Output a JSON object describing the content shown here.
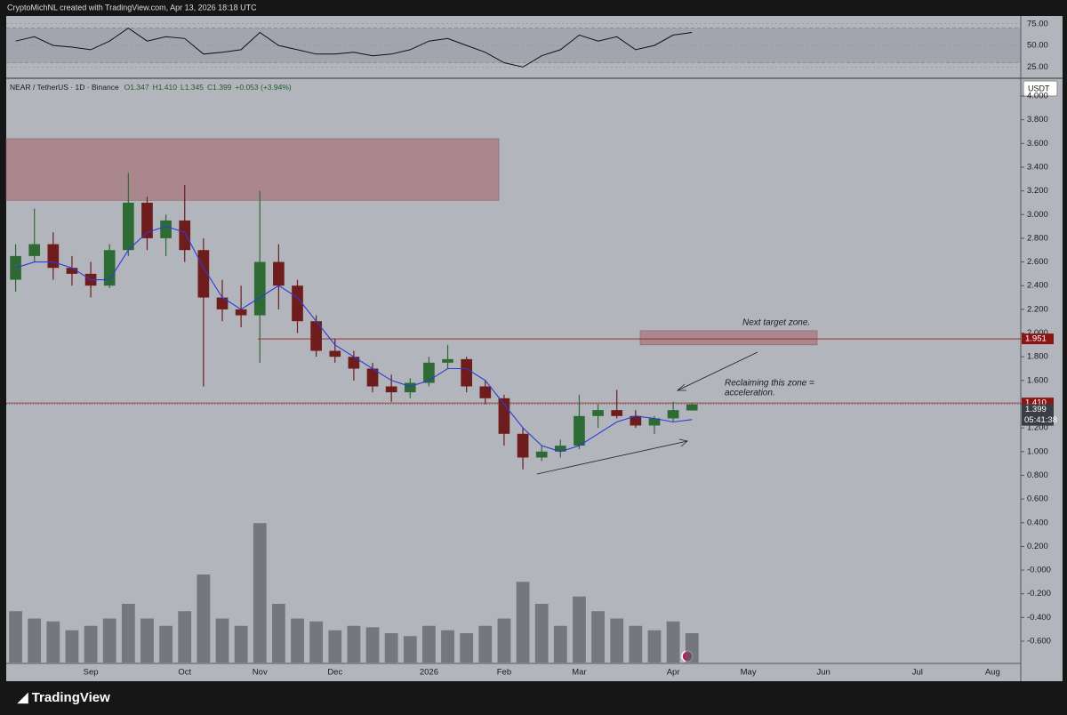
{
  "chart_data": {
    "type": "candlestick",
    "credit": "CryptoMichNL created with TradingView.com, Apr 13, 2026 18:18 UTC",
    "legend": {
      "symbol": "NEAR / TetherUS · 1D · Binance",
      "open": "O1.347",
      "high": "H1.410",
      "low": "L1.345",
      "close": "C1.399",
      "change": "+0.053 (+3.94%)"
    },
    "currency": "USDT",
    "brand": "TradingView",
    "categories": [
      null,
      null,
      null,
      null,
      "Sep",
      null,
      null,
      null,
      null,
      "Oct",
      null,
      null,
      null,
      "Nov",
      null,
      null,
      null,
      "Dec",
      null,
      null,
      null,
      null,
      "2026",
      null,
      null,
      null,
      "Feb",
      null,
      null,
      null,
      "Mar",
      null,
      null,
      null,
      null,
      "Apr",
      null,
      null,
      null,
      "May",
      null,
      null,
      null,
      "Jun",
      null,
      null,
      null,
      null,
      "Jul",
      null,
      null,
      null,
      "Aug",
      null
    ],
    "open": [
      2.45,
      2.65,
      2.75,
      2.55,
      2.5,
      2.4,
      2.7,
      3.1,
      2.8,
      2.95,
      2.7,
      2.3,
      2.2,
      2.15,
      2.6,
      2.4,
      2.1,
      1.85,
      1.8,
      1.7,
      1.55,
      1.5,
      1.58,
      1.75,
      1.78,
      1.55,
      1.45,
      1.15,
      0.95,
      1.0,
      1.05,
      1.3,
      1.35,
      1.3,
      1.22,
      1.28,
      1.347,
      null,
      null,
      null,
      null,
      null,
      null,
      null,
      null,
      null,
      null,
      null,
      null,
      null,
      null,
      null,
      null,
      null
    ],
    "high": [
      2.75,
      3.05,
      2.85,
      2.65,
      2.6,
      2.75,
      3.35,
      3.15,
      3.0,
      3.25,
      2.8,
      2.45,
      2.4,
      3.2,
      2.75,
      2.45,
      2.15,
      1.95,
      1.85,
      1.75,
      1.65,
      1.62,
      1.8,
      1.9,
      1.8,
      1.6,
      1.48,
      1.2,
      1.05,
      1.1,
      1.48,
      1.4,
      1.52,
      1.35,
      1.3,
      1.42,
      1.41,
      null,
      null,
      null,
      null,
      null,
      null,
      null,
      null,
      null,
      null,
      null,
      null,
      null,
      null,
      null,
      null,
      null
    ],
    "low": [
      2.35,
      2.6,
      2.45,
      2.4,
      2.3,
      2.38,
      2.65,
      2.7,
      2.65,
      2.6,
      1.55,
      2.1,
      2.05,
      1.75,
      2.2,
      2.0,
      1.8,
      1.75,
      1.6,
      1.5,
      1.42,
      1.45,
      1.55,
      1.7,
      1.5,
      1.4,
      1.05,
      0.85,
      0.92,
      0.95,
      1.02,
      1.2,
      1.28,
      1.2,
      1.15,
      1.25,
      1.345,
      null,
      null,
      null,
      null,
      null,
      null,
      null,
      null,
      null,
      null,
      null,
      null,
      null,
      null,
      null,
      null,
      null
    ],
    "close": [
      2.65,
      2.75,
      2.55,
      2.5,
      2.4,
      2.7,
      3.1,
      2.8,
      2.95,
      2.7,
      2.3,
      2.2,
      2.15,
      2.6,
      2.4,
      2.1,
      1.85,
      1.8,
      1.7,
      1.55,
      1.5,
      1.58,
      1.75,
      1.78,
      1.55,
      1.45,
      1.15,
      0.95,
      1.0,
      1.05,
      1.3,
      1.35,
      1.3,
      1.22,
      1.28,
      1.35,
      1.399,
      null,
      null,
      null,
      null,
      null,
      null,
      null,
      null,
      null,
      null,
      null,
      null,
      null,
      null,
      null,
      null,
      null
    ],
    "up_color": "#2e6b34",
    "down_color": "#6e1c1c",
    "ma": {
      "color": "#2b3bd6",
      "values": [
        2.55,
        2.6,
        2.6,
        2.55,
        2.45,
        2.45,
        2.7,
        2.85,
        2.9,
        2.85,
        2.55,
        2.3,
        2.2,
        2.3,
        2.4,
        2.3,
        2.1,
        1.9,
        1.8,
        1.7,
        1.6,
        1.55,
        1.6,
        1.7,
        1.7,
        1.6,
        1.4,
        1.2,
        1.05,
        1.0,
        1.05,
        1.15,
        1.25,
        1.3,
        1.28,
        1.25,
        1.27,
        null,
        null,
        null,
        null,
        null,
        null,
        null,
        null,
        null,
        null,
        null,
        null,
        null,
        null,
        null,
        null,
        null
      ]
    },
    "ylim": [
      -0.78,
      4.15
    ],
    "yticks": [
      {
        "value": -0.6,
        "label": "-0.600"
      },
      {
        "value": -0.4,
        "label": "-0.400"
      },
      {
        "value": -0.2,
        "label": "-0.200"
      },
      {
        "value": 0,
        "label": "-0.000"
      },
      {
        "value": 0.2,
        "label": "0.200"
      },
      {
        "value": 0.4,
        "label": "0.400"
      },
      {
        "value": 0.6,
        "label": "0.600"
      },
      {
        "value": 0.8,
        "label": "0.800"
      },
      {
        "value": 1,
        "label": "1.000"
      },
      {
        "value": 1.2,
        "label": "1.200"
      },
      {
        "value": 1.4,
        "label": "1.400"
      },
      {
        "value": 1.6,
        "label": "1.600"
      },
      {
        "value": 1.8,
        "label": "1.800"
      },
      {
        "value": 2,
        "label": "2.000"
      },
      {
        "value": 2.2,
        "label": "2.200"
      },
      {
        "value": 2.4,
        "label": "2.400"
      },
      {
        "value": 2.6,
        "label": "2.600"
      },
      {
        "value": 2.8,
        "label": "2.800"
      },
      {
        "value": 3,
        "label": "3.000"
      },
      {
        "value": 3.2,
        "label": "3.200"
      },
      {
        "value": 3.4,
        "label": "3.400"
      },
      {
        "value": 3.6,
        "label": "3.600"
      },
      {
        "value": 3.8,
        "label": "3.800"
      },
      {
        "value": 4,
        "label": "4.000"
      }
    ],
    "zones": [
      {
        "from": 3.12,
        "to": 3.64,
        "color": "#a9878d"
      },
      {
        "from": 1.9,
        "to": 2.02,
        "color": "#a9878d"
      }
    ],
    "levels": [
      {
        "value": 1.951,
        "color": "#9b1a1a"
      },
      {
        "value": 1.41,
        "color": "#9b1a1a"
      }
    ],
    "price_labels": [
      {
        "value": 1.951,
        "color": "#8b1414"
      },
      {
        "value": {
          "value": 1.41,
          "label": "1.410"
        },
        "color": "#8b1414"
      },
      {
        "value": 1.399,
        "color": "#3a3d44",
        "countdown": "05:41:38"
      }
    ],
    "annotations": [
      "Next target zone.",
      "Reclaiming this zone =",
      "acceleration."
    ],
    "volume": {
      "color": "#5a5d64",
      "values": [
        35,
        30,
        28,
        22,
        25,
        30,
        40,
        30,
        25,
        35,
        60,
        30,
        25,
        95,
        40,
        30,
        28,
        22,
        25,
        24,
        20,
        18,
        25,
        22,
        20,
        25,
        30,
        55,
        40,
        25,
        45,
        35,
        30,
        25,
        22,
        28,
        20,
        null,
        null,
        null,
        null,
        null,
        null,
        null,
        null,
        null,
        null,
        null,
        null,
        null,
        null,
        null,
        null,
        null
      ]
    },
    "vlim": [
      0,
      100
    ],
    "rsi": {
      "color": "#111111",
      "values": [
        55,
        60,
        50,
        48,
        45,
        55,
        70,
        55,
        60,
        58,
        40,
        42,
        45,
        65,
        50,
        45,
        40,
        40,
        42,
        38,
        40,
        45,
        55,
        58,
        50,
        42,
        30,
        25,
        38,
        45,
        62,
        55,
        60,
        45,
        50,
        62,
        65,
        null,
        null,
        null,
        null,
        null,
        null,
        null,
        null,
        null,
        null,
        null,
        null,
        null,
        null,
        null,
        null,
        null
      ]
    },
    "rsi_lim": [
      12,
      84
    ],
    "rsi_band": [
      30,
      70
    ],
    "rsi_ticks": [
      {
        "value": 25,
        "label": "25.00"
      },
      {
        "value": 50,
        "label": "50.00"
      },
      {
        "value": 75,
        "label": "75.00"
      }
    ]
  }
}
